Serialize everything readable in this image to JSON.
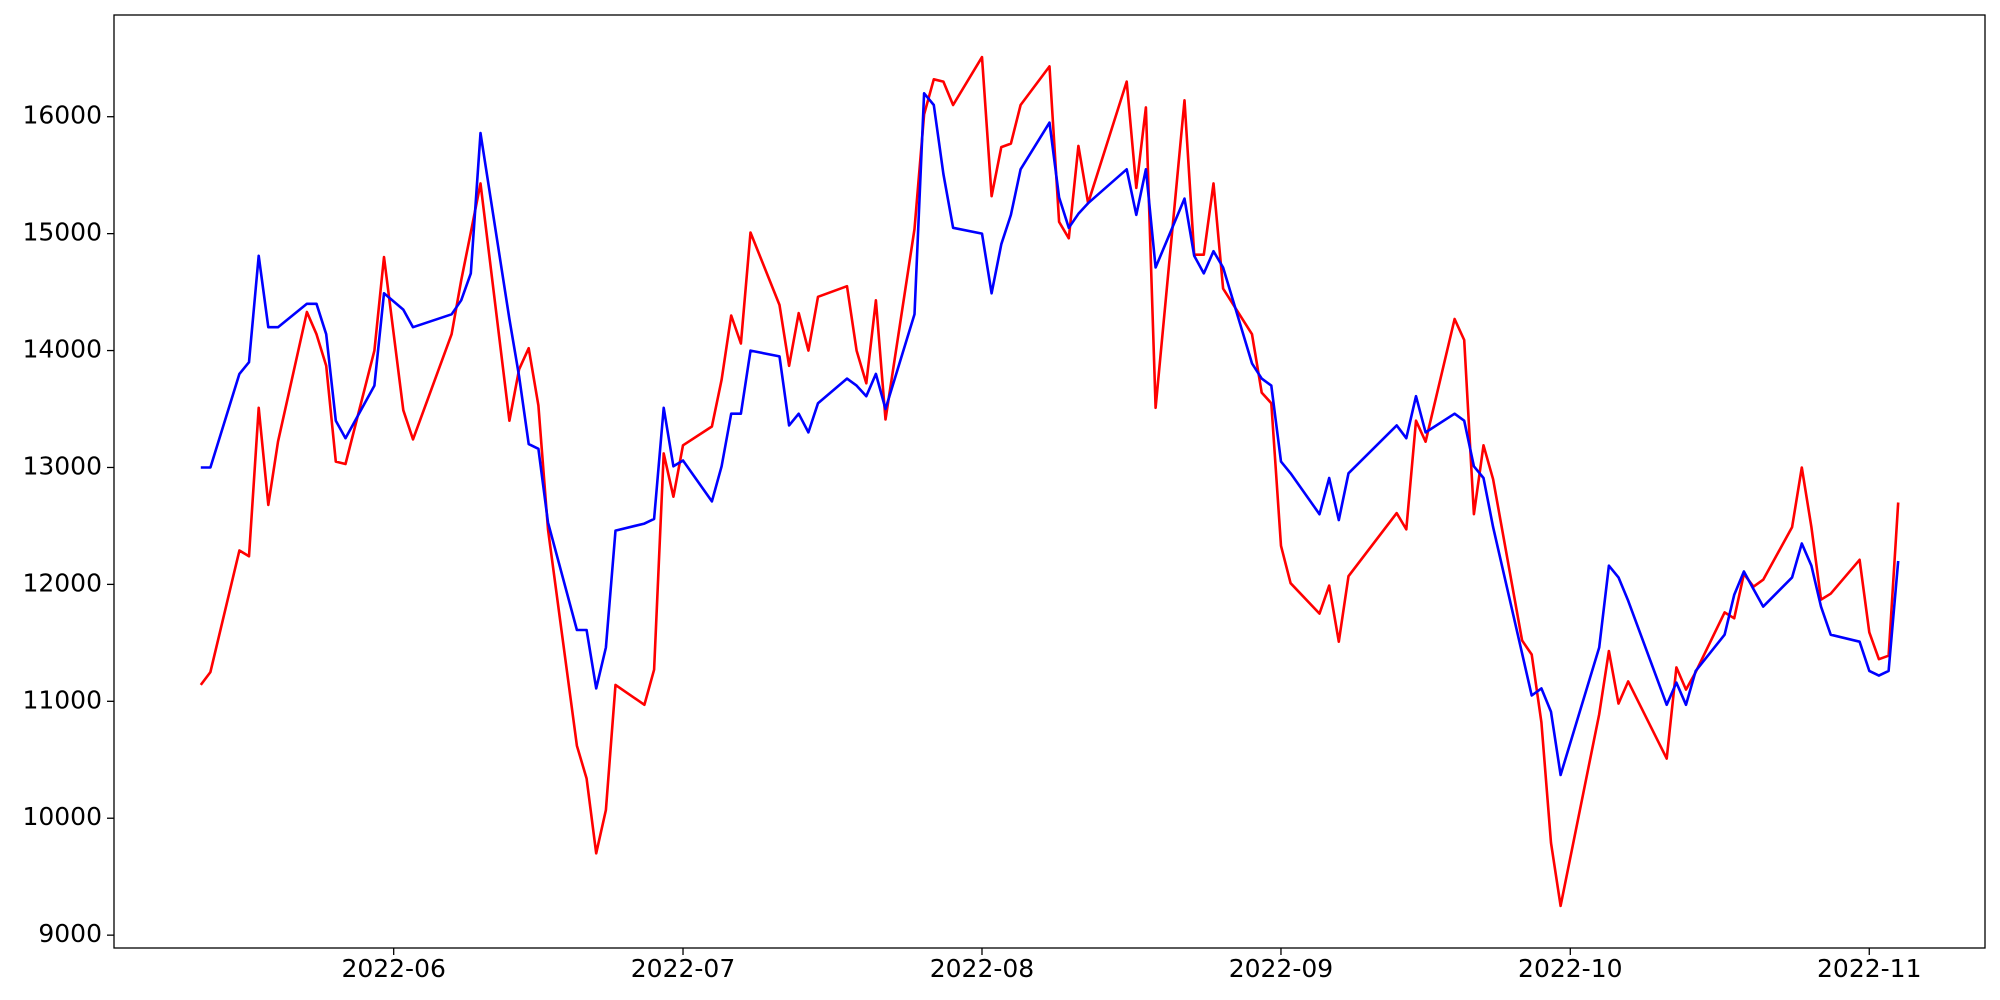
{
  "chart_data": {
    "type": "line",
    "x": [
      "2022-05-12",
      "2022-05-13",
      "2022-05-16",
      "2022-05-17",
      "2022-05-18",
      "2022-05-19",
      "2022-05-20",
      "2022-05-23",
      "2022-05-24",
      "2022-05-25",
      "2022-05-26",
      "2022-05-27",
      "2022-05-30",
      "2022-05-31",
      "2022-06-02",
      "2022-06-03",
      "2022-06-07",
      "2022-06-08",
      "2022-06-09",
      "2022-06-10",
      "2022-06-13",
      "2022-06-14",
      "2022-06-15",
      "2022-06-16",
      "2022-06-17",
      "2022-06-20",
      "2022-06-21",
      "2022-06-22",
      "2022-06-23",
      "2022-06-24",
      "2022-06-27",
      "2022-06-28",
      "2022-06-29",
      "2022-06-30",
      "2022-07-01",
      "2022-07-04",
      "2022-07-05",
      "2022-07-06",
      "2022-07-07",
      "2022-07-08",
      "2022-07-11",
      "2022-07-12",
      "2022-07-13",
      "2022-07-14",
      "2022-07-15",
      "2022-07-18",
      "2022-07-19",
      "2022-07-20",
      "2022-07-21",
      "2022-07-22",
      "2022-07-25",
      "2022-07-26",
      "2022-07-27",
      "2022-07-28",
      "2022-07-29",
      "2022-08-01",
      "2022-08-02",
      "2022-08-03",
      "2022-08-04",
      "2022-08-05",
      "2022-08-08",
      "2022-08-09",
      "2022-08-10",
      "2022-08-11",
      "2022-08-12",
      "2022-08-16",
      "2022-08-17",
      "2022-08-18",
      "2022-08-19",
      "2022-08-22",
      "2022-08-23",
      "2022-08-24",
      "2022-08-25",
      "2022-08-26",
      "2022-08-29",
      "2022-08-30",
      "2022-08-31",
      "2022-09-01",
      "2022-09-02",
      "2022-09-05",
      "2022-09-06",
      "2022-09-07",
      "2022-09-08",
      "2022-09-13",
      "2022-09-14",
      "2022-09-15",
      "2022-09-16",
      "2022-09-19",
      "2022-09-20",
      "2022-09-21",
      "2022-09-22",
      "2022-09-23",
      "2022-09-26",
      "2022-09-27",
      "2022-09-28",
      "2022-09-29",
      "2022-09-30",
      "2022-10-04",
      "2022-10-05",
      "2022-10-06",
      "2022-10-07",
      "2022-10-11",
      "2022-10-12",
      "2022-10-13",
      "2022-10-14",
      "2022-10-17",
      "2022-10-18",
      "2022-10-19",
      "2022-10-20",
      "2022-10-21",
      "2022-10-24",
      "2022-10-25",
      "2022-10-26",
      "2022-10-27",
      "2022-10-28",
      "2022-10-31",
      "2022-11-01",
      "2022-11-02",
      "2022-11-03",
      "2022-11-04"
    ],
    "series": [
      {
        "color": "#ff0000",
        "values": [
          11140,
          11250,
          12290,
          12240,
          13510,
          12680,
          13220,
          14330,
          14140,
          13870,
          13050,
          13030,
          14000,
          14800,
          13490,
          13240,
          14140,
          14600,
          15010,
          15430,
          13400,
          13840,
          14020,
          13530,
          12470,
          10620,
          10340,
          9700,
          10070,
          11140,
          10970,
          11270,
          13120,
          12750,
          13190,
          13350,
          13750,
          14300,
          14060,
          15010,
          14390,
          13870,
          14320,
          14000,
          14460,
          14550,
          14000,
          13720,
          14430,
          13410,
          15040,
          16020,
          16320,
          16300,
          16100,
          16510,
          15320,
          15740,
          15770,
          16100,
          16430,
          15100,
          14960,
          15750,
          15260,
          16300,
          15390,
          16080,
          13510,
          16140,
          14820,
          14820,
          15430,
          14530,
          14140,
          13640,
          13550,
          12330,
          12010,
          11750,
          11990,
          11510,
          12070,
          12610,
          12470,
          13400,
          13220,
          14270,
          14090,
          12600,
          13190,
          12900,
          11520,
          11400,
          10820,
          9790,
          9250,
          10890,
          11430,
          10980,
          11170,
          10510,
          11290,
          11100,
          11250,
          11760,
          11710,
          12090,
          11980,
          12040,
          12490,
          13000,
          12490,
          11870,
          11920,
          12210,
          11590,
          11360,
          11390,
          12700
        ]
      },
      {
        "color": "#0000ff",
        "values": [
          13000,
          13000,
          13800,
          13900,
          14810,
          14200,
          14200,
          14400,
          14400,
          14140,
          13400,
          13250,
          13700,
          14490,
          14350,
          14200,
          14310,
          14430,
          14660,
          15860,
          14270,
          13780,
          13200,
          13160,
          12530,
          11610,
          11610,
          11110,
          11460,
          12460,
          12520,
          12560,
          13510,
          13010,
          13060,
          12710,
          13010,
          13460,
          13460,
          14000,
          13950,
          13360,
          13460,
          13300,
          13550,
          13760,
          13700,
          13610,
          13800,
          13500,
          14310,
          16200,
          16100,
          15510,
          15050,
          15000,
          14490,
          14910,
          15160,
          15550,
          15950,
          15310,
          15050,
          15170,
          15260,
          15550,
          15160,
          15550,
          14710,
          15300,
          14810,
          14660,
          14850,
          14710,
          13890,
          13760,
          13700,
          13050,
          12950,
          12600,
          12910,
          12550,
          12950,
          13360,
          13250,
          13610,
          13300,
          13460,
          13400,
          13010,
          12910,
          12490,
          11410,
          11050,
          11110,
          10910,
          10370,
          11460,
          12160,
          12060,
          11860,
          10970,
          11160,
          10970,
          11260,
          11570,
          11910,
          12110,
          11960,
          11810,
          12060,
          12350,
          12160,
          11810,
          11570,
          11510,
          11260,
          11220,
          11260,
          12200
        ]
      }
    ],
    "xlim": [
      "2022-05-03",
      "2022-11-13"
    ],
    "xticks": [
      "2022-06",
      "2022-07",
      "2022-08",
      "2022-09",
      "2022-10",
      "2022-11"
    ],
    "ylim": [
      8890,
      16870
    ],
    "yticks": [
      9000,
      10000,
      11000,
      12000,
      13000,
      14000,
      15000,
      16000
    ],
    "grid": false
  }
}
